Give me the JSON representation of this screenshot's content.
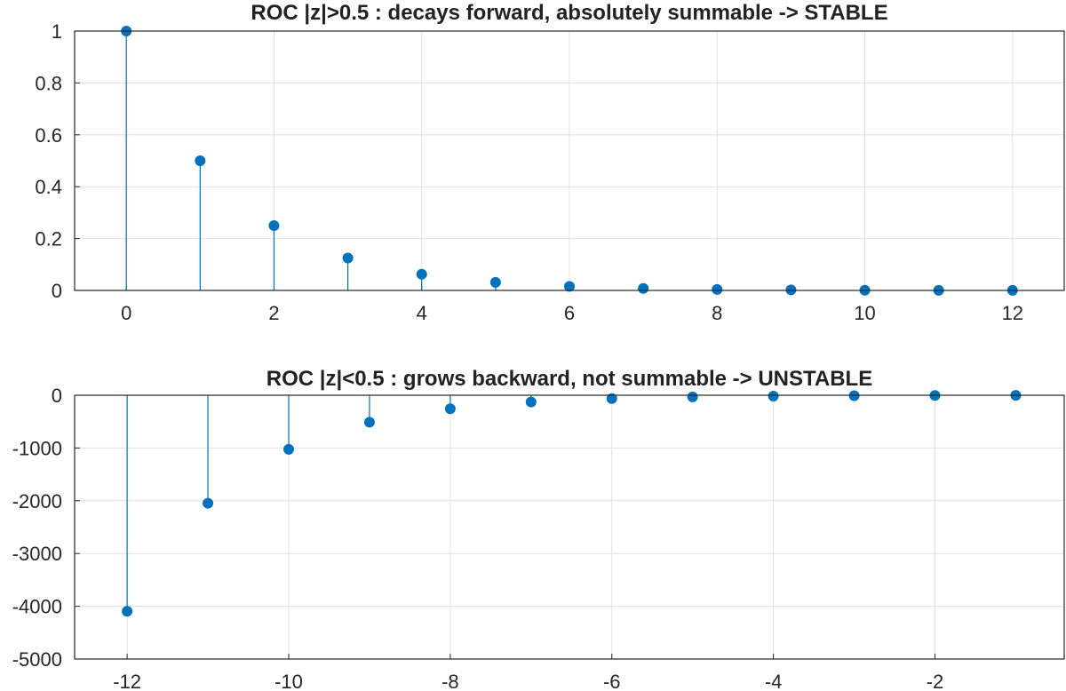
{
  "chart_data": [
    {
      "type": "stem",
      "title": "ROC |z|>0.5 : decays forward, absolutely summable -> STABLE",
      "xlabel": "",
      "ylabel": "",
      "xlim": [
        -0.7,
        12.7
      ],
      "ylim": [
        0,
        1
      ],
      "xticks": [
        0,
        2,
        4,
        6,
        8,
        10,
        12
      ],
      "yticks": [
        0,
        0.2,
        0.4,
        0.6,
        0.8,
        1
      ],
      "grid": true,
      "color": "#0072BD",
      "x": [
        0,
        1,
        2,
        3,
        4,
        5,
        6,
        7,
        8,
        9,
        10,
        11,
        12
      ],
      "y": [
        1,
        0.5,
        0.25,
        0.125,
        0.0625,
        0.03125,
        0.015625,
        0.0078125,
        0.00390625,
        0.001953125,
        0.0009765625,
        0.00048828125,
        0.000244140625
      ]
    },
    {
      "type": "stem",
      "title": "ROC |z|<0.5 : grows backward, not summable -> UNSTABLE",
      "xlabel": "",
      "ylabel": "",
      "xlim": [
        -12.65,
        -0.4
      ],
      "ylim": [
        -5000,
        0
      ],
      "xticks": [
        -12,
        -10,
        -8,
        -6,
        -4,
        -2
      ],
      "yticks": [
        -5000,
        -4000,
        -3000,
        -2000,
        -1000,
        0
      ],
      "grid": true,
      "color": "#0072BD",
      "x": [
        -12,
        -11,
        -10,
        -9,
        -8,
        -7,
        -6,
        -5,
        -4,
        -3,
        -2,
        -1
      ],
      "y": [
        -4096,
        -2048,
        -1024,
        -512,
        -256,
        -128,
        -64,
        -32,
        -16,
        -8,
        -4,
        -2
      ]
    }
  ]
}
